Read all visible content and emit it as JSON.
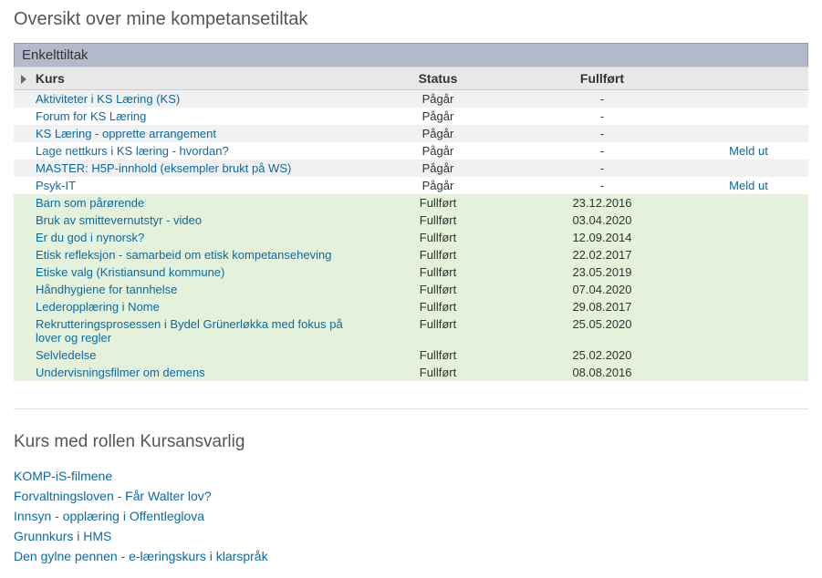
{
  "page_title": "Oversikt over mine kompetansetiltak",
  "section_header": "Enkelttiltak",
  "columns": {
    "kurs": "Kurs",
    "status": "Status",
    "fullfort": "Fullført"
  },
  "rows": [
    {
      "kurs": "Aktiviteter i KS Læring (KS)",
      "status": "Pågår",
      "date": "-",
      "action": "",
      "style": "gray"
    },
    {
      "kurs": "Forum for KS Læring",
      "status": "Pågår",
      "date": "-",
      "action": "",
      "style": "plain"
    },
    {
      "kurs": "KS Læring - opprette arrangement",
      "status": "Pågår",
      "date": "-",
      "action": "",
      "style": "gray"
    },
    {
      "kurs": "Lage nettkurs i KS læring - hvordan?",
      "status": "Pågår",
      "date": "-",
      "action": "Meld ut",
      "style": "plain"
    },
    {
      "kurs": "MASTER: H5P-innhold (eksempler brukt på WS)",
      "status": "Pågår",
      "date": "-",
      "action": "",
      "style": "gray"
    },
    {
      "kurs": "Psyk-IT",
      "status": "Pågår",
      "date": "-",
      "action": "Meld ut",
      "style": "plain"
    },
    {
      "kurs": "Barn som pårørende",
      "status": "Fullført",
      "date": "23.12.2016",
      "action": "",
      "style": "green"
    },
    {
      "kurs": "Bruk av smittevernutstyr - video",
      "status": "Fullført",
      "date": "03.04.2020",
      "action": "",
      "style": "green"
    },
    {
      "kurs": "Er du god i nynorsk?",
      "status": "Fullført",
      "date": "12.09.2014",
      "action": "",
      "style": "green"
    },
    {
      "kurs": "Etisk refleksjon - samarbeid om etisk kompetanseheving",
      "status": "Fullført",
      "date": "22.02.2017",
      "action": "",
      "style": "green"
    },
    {
      "kurs": "Etiske valg (Kristiansund kommune)",
      "status": "Fullført",
      "date": "23.05.2019",
      "action": "",
      "style": "green"
    },
    {
      "kurs": "Håndhygiene for tannhelse",
      "status": "Fullført",
      "date": "07.04.2020",
      "action": "",
      "style": "green"
    },
    {
      "kurs": "Lederopplæring i Nome",
      "status": "Fullført",
      "date": "29.08.2017",
      "action": "",
      "style": "green"
    },
    {
      "kurs": "Rekrutteringsprosessen i Bydel Grünerløkka med fokus på lover og regler",
      "status": "Fullført",
      "date": "25.05.2020",
      "action": "",
      "style": "green"
    },
    {
      "kurs": "Selvledelse",
      "status": "Fullført",
      "date": "25.02.2020",
      "action": "",
      "style": "green"
    },
    {
      "kurs": "Undervisningsfilmer om demens",
      "status": "Fullført",
      "date": "08.08.2016",
      "action": "",
      "style": "green"
    }
  ],
  "section2_title": "Kurs med rollen Kursansvarlig",
  "course_links": [
    "KOMP-iS-filmene",
    "Forvaltningsloven - Får Walter lov?",
    "Innsyn - opplæring i Offentleglova",
    "Grunnkurs i HMS",
    "Den gylne pennen - e-læringskurs i klarspråk"
  ]
}
